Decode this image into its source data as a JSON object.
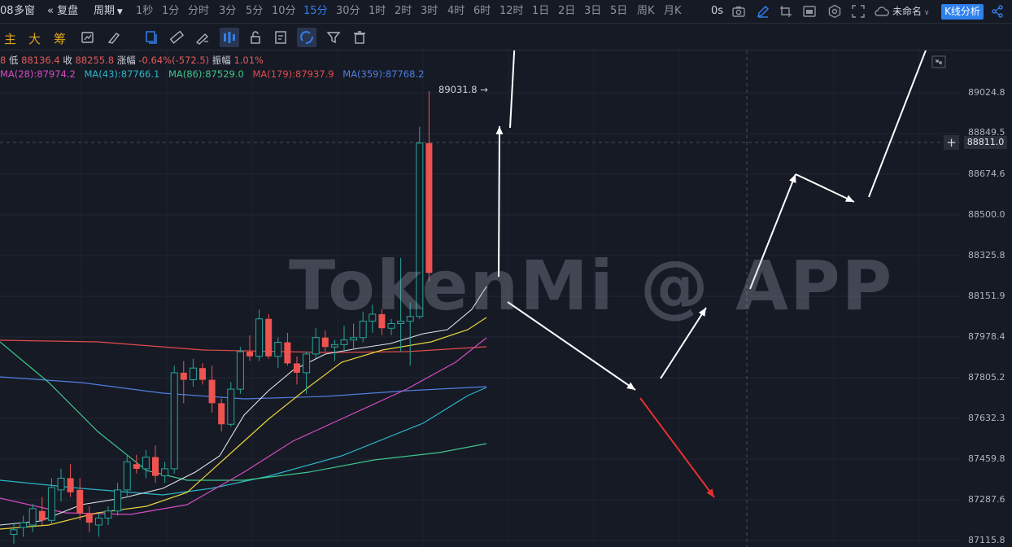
{
  "topbar": {
    "window_prefix": "08",
    "multi_window": "多窗",
    "replay": "复盘",
    "period": "周期",
    "timeframes": [
      "1秒",
      "1分",
      "分时",
      "3分",
      "5分",
      "10分",
      "15分",
      "30分",
      "1时",
      "2时",
      "3时",
      "4时",
      "6时",
      "12时",
      "1日",
      "2日",
      "3日",
      "5日",
      "周K",
      "月K"
    ],
    "active_timeframe": "15分",
    "countdown": "0s",
    "layout_name": "未命名",
    "kline_analysis": "K线分析"
  },
  "toolbar": {
    "indicators": [
      "主",
      "大",
      "筹"
    ]
  },
  "legend": {
    "low_label": "低",
    "low_value": "88136.4",
    "close_label": "收",
    "close_value": "88255.8",
    "change_label": "涨幅",
    "change_value": "-0.64%(-572.5)",
    "amp_label": "振幅",
    "amp_value": "1.01%",
    "ma": [
      {
        "text": "MA(28):87974.2",
        "color": "#d54cc1"
      },
      {
        "text": "MA(43):87766.1",
        "color": "#2bb5c8"
      },
      {
        "text": "MA(86):87529.0",
        "color": "#3fc68a"
      },
      {
        "text": "MA(179):87937.9",
        "color": "#e24b4b"
      },
      {
        "text": "MA(359):87768.2",
        "color": "#4f7fe0"
      }
    ]
  },
  "price_axis": {
    "labels": [
      "89024.8",
      "88849.5",
      "88674.6",
      "88500.0",
      "88325.8",
      "88151.9",
      "87978.4",
      "87805.2",
      "87632.3",
      "87459.8",
      "87287.6",
      "87115.8"
    ],
    "current_price": "88811.0"
  },
  "chart": {
    "max_label": "89031.8 →",
    "watermark": "TokenMi @ APP",
    "colors": {
      "up": "#26a69a",
      "down": "#ef5350",
      "bg": "#161a25"
    }
  }
}
